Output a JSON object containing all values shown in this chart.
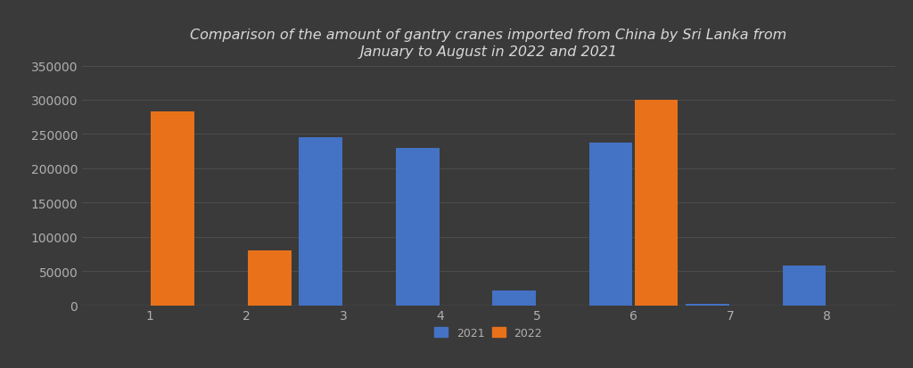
{
  "title": "Comparison of the amount of gantry cranes imported from China by Sri Lanka from\nJanuary to August in 2022 and 2021",
  "months": [
    1,
    2,
    3,
    4,
    5,
    6,
    7,
    8
  ],
  "values_2021": [
    0,
    0,
    245000,
    230000,
    21000,
    237000,
    2000,
    58000
  ],
  "values_2022": [
    283000,
    80000,
    0,
    0,
    0,
    300000,
    0,
    0
  ],
  "color_2021": "#4472C4",
  "color_2022": "#E8711A",
  "background_color": "#3a3a3a",
  "title_color": "#d8d8d8",
  "tick_color": "#b0b0b0",
  "grid_color": "#505050",
  "ylim": [
    0,
    350000
  ],
  "yticks": [
    0,
    50000,
    100000,
    150000,
    200000,
    250000,
    300000,
    350000
  ],
  "legend_labels": [
    "2021",
    "2022"
  ],
  "bar_width": 0.45,
  "bar_gap": 0.02
}
